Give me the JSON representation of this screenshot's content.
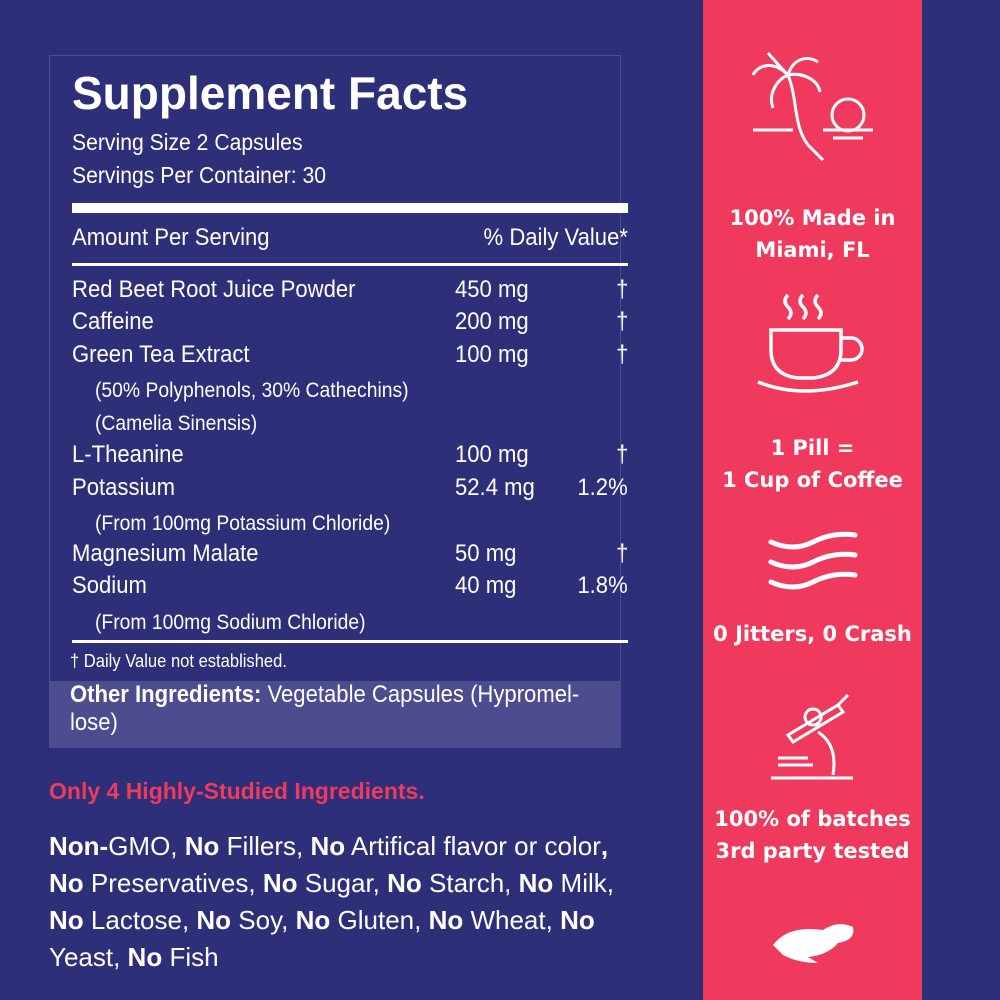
{
  "label": {
    "title": "Supplement Facts",
    "serving_size": "Serving Size 2 Capsules",
    "servings_per_container": "Servings Per Container: 30",
    "amount_header": "Amount Per Serving",
    "dv_header": "% Daily Value*",
    "rows": [
      {
        "name": "Red Beet Root Juice Powder",
        "amount": "450 mg",
        "dv": "†"
      },
      {
        "name": "Caffeine",
        "amount": "200 mg",
        "dv": "†"
      },
      {
        "name": "Green Tea Extract",
        "amount": "100 mg",
        "dv": "†"
      },
      {
        "name": "L-Theanine",
        "amount": "100 mg",
        "dv": "†"
      },
      {
        "name": "Potassium",
        "amount": "52.4 mg",
        "dv": "1.2%"
      },
      {
        "name": "Magnesium Malate",
        "amount": "50 mg",
        "dv": "†"
      },
      {
        "name": "Sodium",
        "amount": "40 mg",
        "dv": "1.8%"
      }
    ],
    "green_tea_note1": "(50% Polyphenols, 30% Cathechins)",
    "green_tea_note2": "(Camelia Sinensis)",
    "potassium_note": "(From 100mg Potassium Chloride)",
    "sodium_note": "(From 100mg Sodium Chloride)",
    "footnote": "† Daily Value not established.",
    "other_label": "Other Ingredients:",
    "other_value": " Vegetable Capsules (Hypromel-lose)"
  },
  "tagline": "Only 4 Highly-Studied Ingredients.",
  "claims": [
    {
      "b": "Non-",
      "t": "GMO, "
    },
    {
      "b": "No",
      "t": " Fillers, "
    },
    {
      "b": "No",
      "t": " Artifical flavor or color"
    },
    {
      "b": ", No",
      "t": " Preservatives, "
    },
    {
      "b": "No",
      "t": " Sugar, "
    },
    {
      "b": "No",
      "t": " Starch, "
    },
    {
      "b": "No",
      "t": " Milk, "
    },
    {
      "b": "No",
      "t": " Lactose, "
    },
    {
      "b": "No",
      "t": " Soy, "
    },
    {
      "b": "No",
      "t": " Gluten, "
    },
    {
      "b": "No",
      "t": " Wheat, "
    },
    {
      "b": "No",
      "t": " Yeast, "
    },
    {
      "b": "No",
      "t": " Fish"
    }
  ],
  "features": [
    {
      "icon": "palm-tree-sunset-icon",
      "line1": "100% Made in",
      "line2": "Miami, FL"
    },
    {
      "icon": "coffee-cup-icon",
      "line1": "1 Pill =",
      "line2": "1 Cup of Coffee"
    },
    {
      "icon": "waves-icon",
      "line1": "0 Jitters, 0 Crash",
      "line2": ""
    },
    {
      "icon": "microscope-icon",
      "line1": "100% of batches",
      "line2": "3rd party tested"
    },
    {
      "icon": "sloth-logo-icon"
    }
  ],
  "colors": {
    "background": "#2d2f78",
    "accent": "#ef3a5d",
    "other_band": "#4b4d8f"
  }
}
